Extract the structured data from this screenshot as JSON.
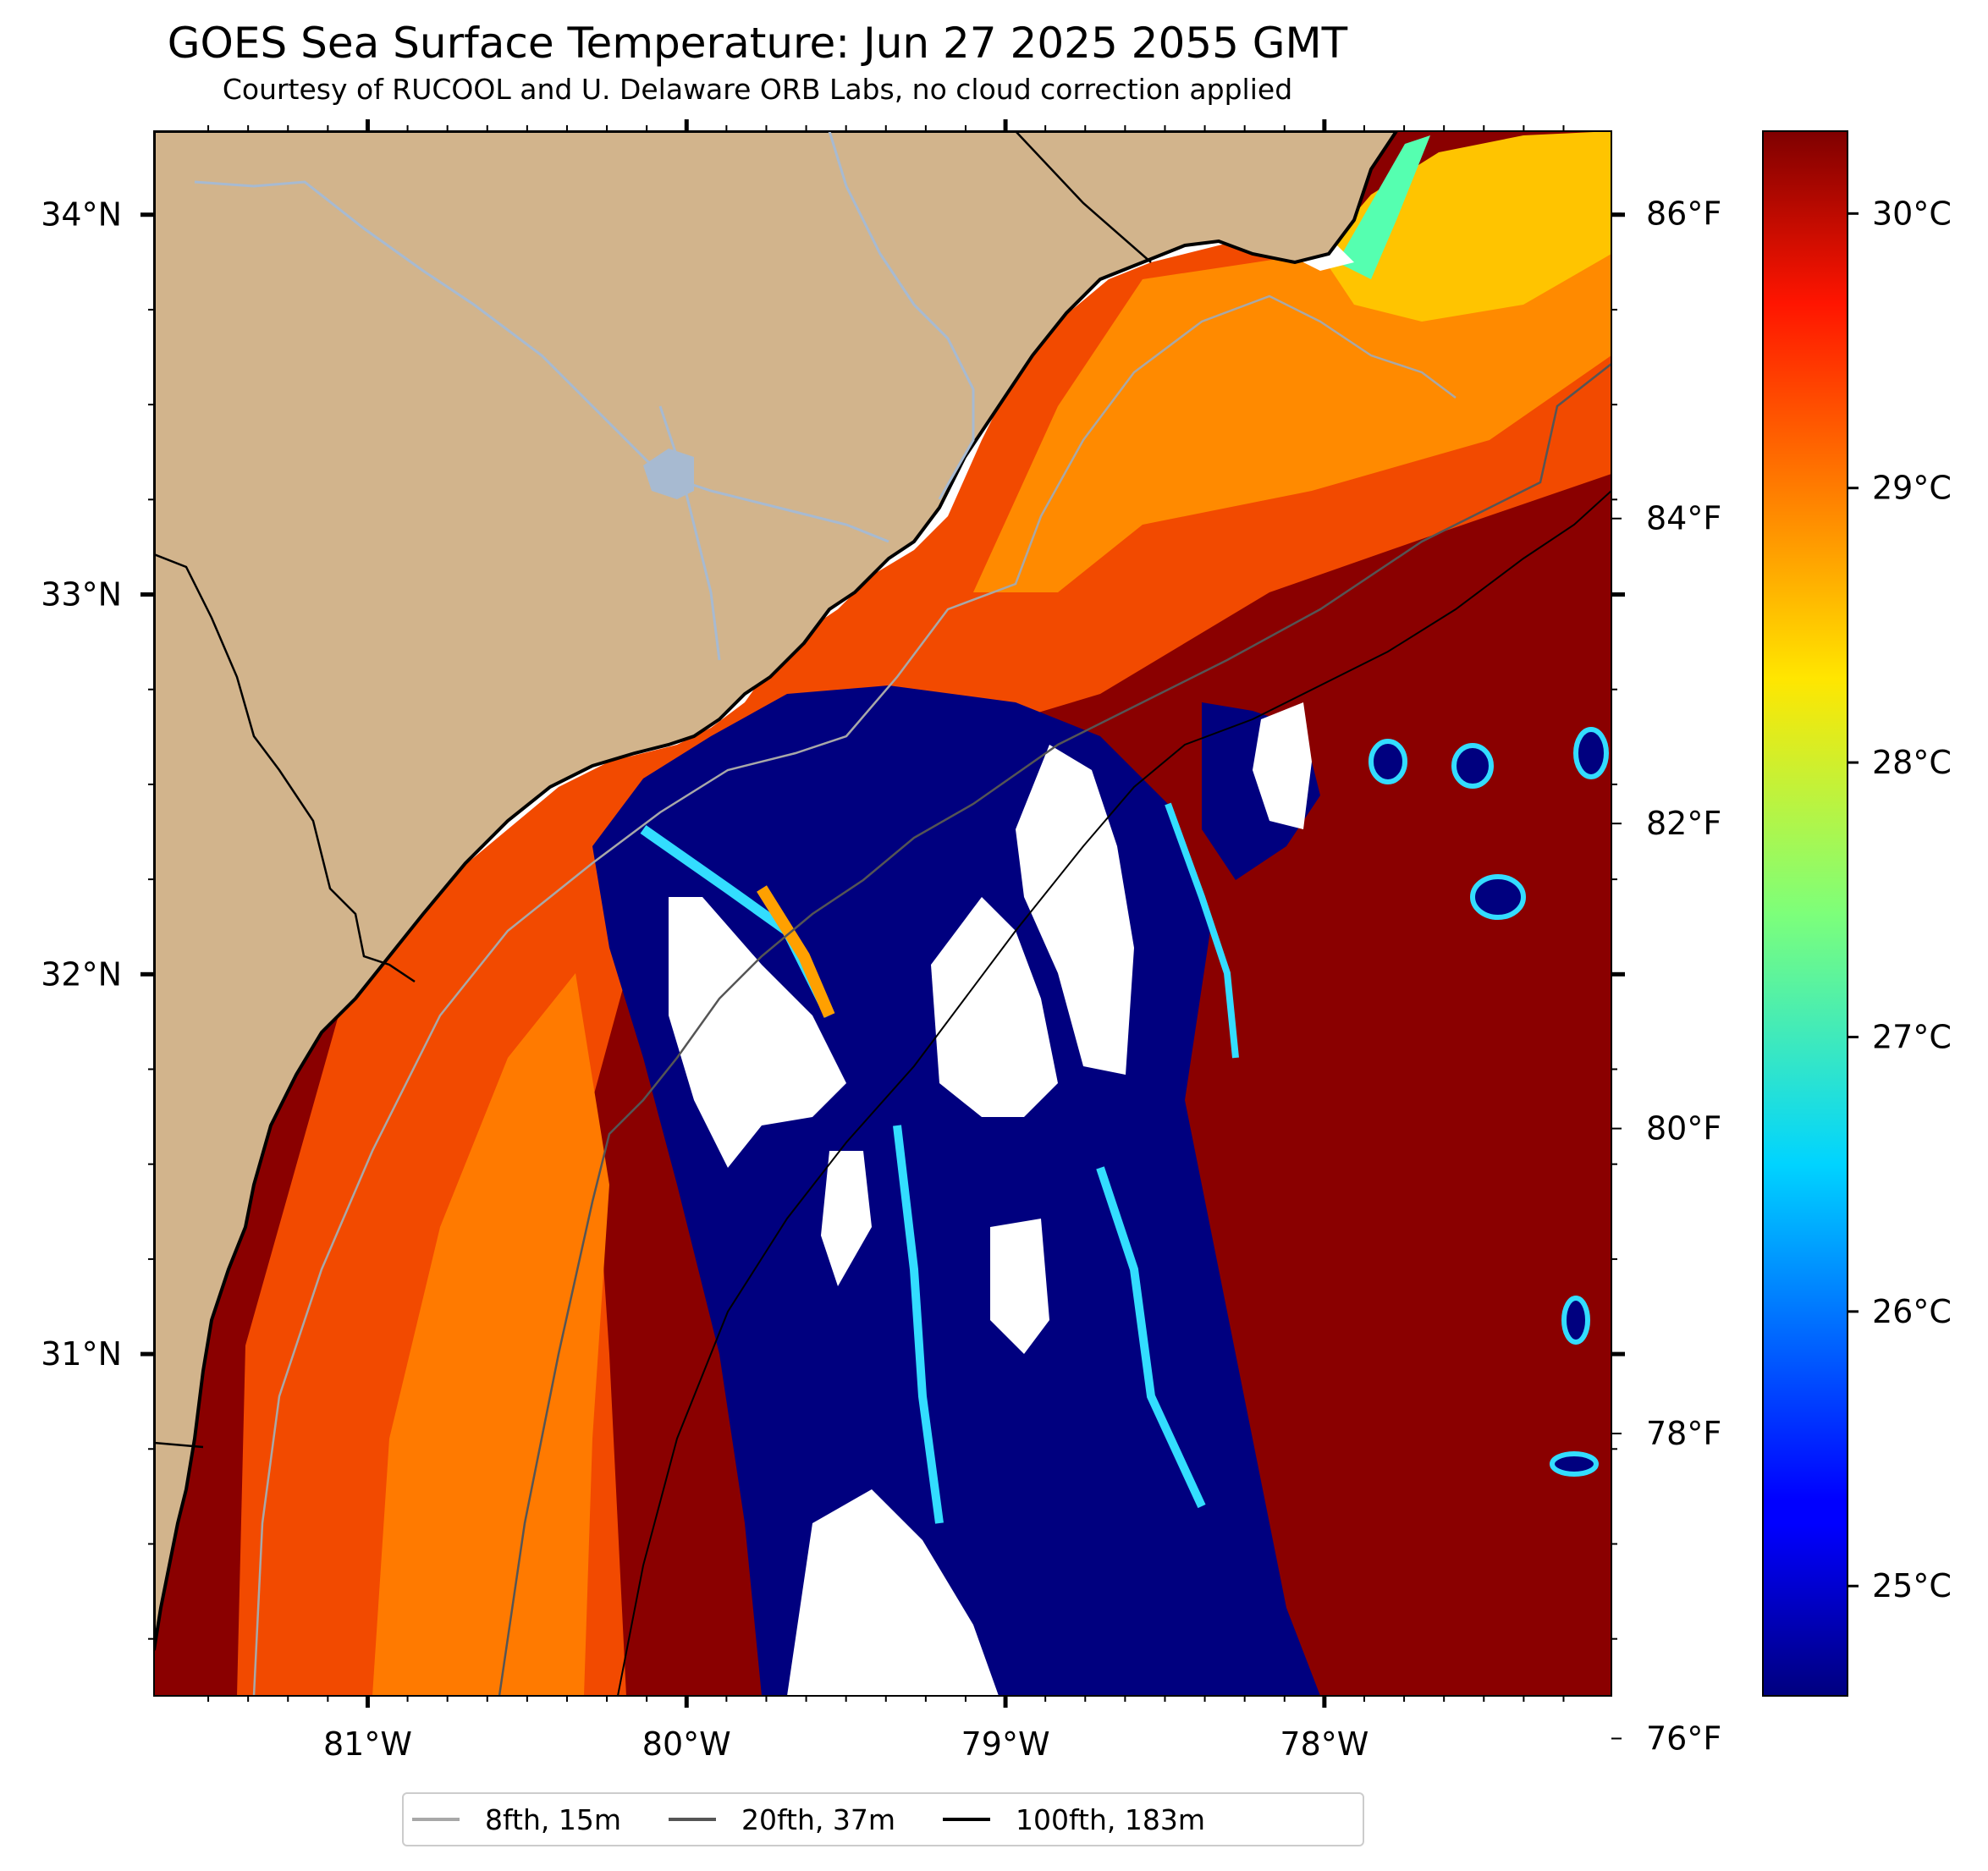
{
  "title": "GOES Sea Surface Temperature: Jun 27 2025 2055 GMT",
  "subtitle": "Courtesy of RUCOOL and U. Delaware ORB Labs, no cloud correction applied",
  "map": {
    "lon_range": [
      -81.67,
      -77.1
    ],
    "lat_range": [
      30.1,
      34.22
    ],
    "lon_ticks": [
      -81,
      -80,
      -79,
      -78
    ],
    "lon_tick_labels": [
      "81°W",
      "80°W",
      "79°W",
      "78°W"
    ],
    "lat_ticks": [
      31,
      32,
      33,
      34
    ],
    "lat_tick_labels": [
      "31°N",
      "32°N",
      "33°N",
      "34°N"
    ],
    "colors": {
      "land": "#d2b48c",
      "cloud_mask": "#ffffff",
      "coastline": "#000000",
      "rivers": "#a7bad1"
    }
  },
  "colorbar": {
    "colormap": "jet",
    "range_c": [
      24.6,
      30.3
    ],
    "celsius_ticks": [
      25,
      26,
      27,
      28,
      29,
      30
    ],
    "celsius_labels": [
      "25°C",
      "26°C",
      "27°C",
      "28°C",
      "29°C",
      "30°C"
    ],
    "fahrenheit_ticks": [
      76,
      78,
      80,
      82,
      84,
      86
    ],
    "fahrenheit_labels": [
      "76°F",
      "78°F",
      "80°F",
      "82°F",
      "84°F",
      "86°F"
    ]
  },
  "legend": [
    {
      "label": "8fth, 15m",
      "color": "#a8a8a8"
    },
    {
      "label": "20fth, 37m",
      "color": "#555555"
    },
    {
      "label": "100fth, 183m",
      "color": "#000000"
    }
  ]
}
